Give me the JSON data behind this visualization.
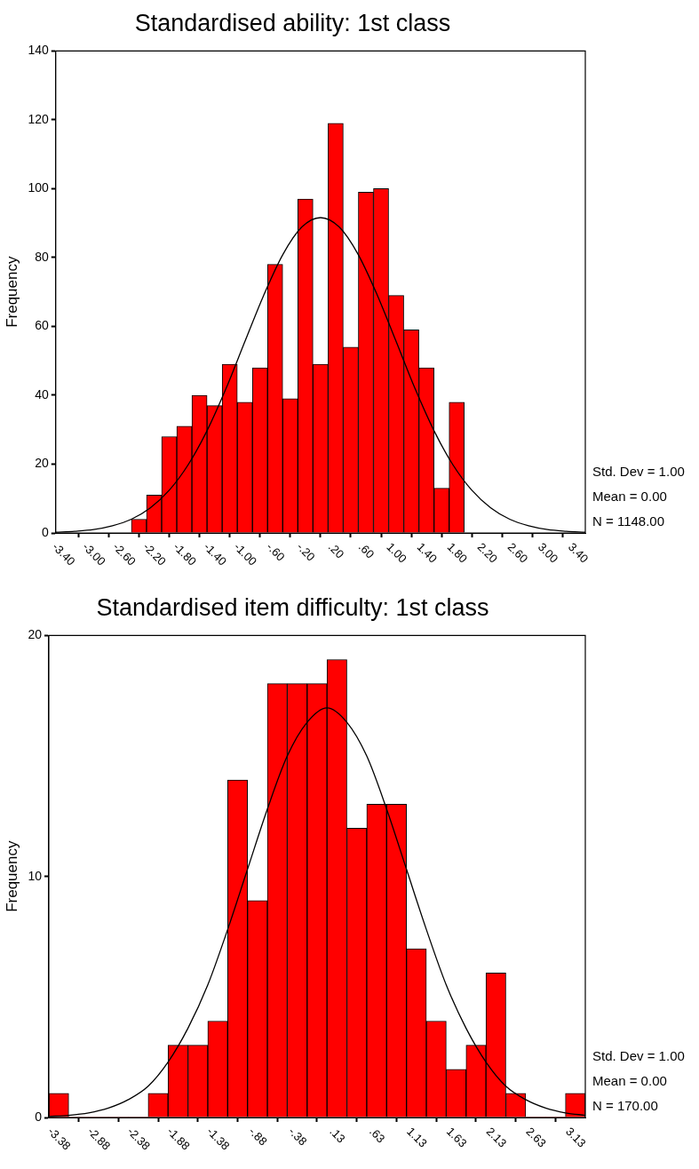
{
  "chart_data": [
    {
      "type": "histogram",
      "title": "Standardised ability: 1st class",
      "ylabel": "Frequency",
      "bins": [
        -2.5,
        -2.3,
        -2.1,
        -1.9,
        -1.7,
        -1.5,
        -1.3,
        -1.1,
        -0.9,
        -0.7,
        -0.5,
        -0.3,
        -0.1,
        0.1,
        0.3,
        0.5,
        0.7,
        0.9,
        1.1,
        1.3,
        1.5,
        1.7,
        1.9
      ],
      "series": [
        {
          "color": "#ff0000",
          "values": [
            4,
            11,
            28,
            31,
            40,
            37,
            49,
            38,
            48,
            78,
            39,
            97,
            49,
            119,
            54,
            99,
            100,
            69,
            59,
            48,
            13,
            38
          ]
        },
        {
          "type": "line",
          "color": "#000000",
          "x": [
            -3.5,
            -3.25,
            -3.0,
            -2.75,
            -2.5,
            -2.25,
            -2.0,
            -1.75,
            -1.5,
            -1.25,
            -1.0,
            -0.75,
            -0.5,
            -0.25,
            0,
            0.25,
            0.5,
            0.75,
            1.0,
            1.25,
            1.5,
            1.75,
            2.0,
            2.25,
            2.5,
            2.75,
            3.0,
            3.25,
            3.5
          ],
          "values": [
            0.2,
            0.5,
            1.0,
            2.1,
            4.0,
            7.3,
            12.4,
            19.8,
            29.7,
            41.9,
            55.6,
            69.1,
            80.8,
            88.8,
            91.6,
            88.8,
            80.8,
            69.1,
            55.6,
            41.9,
            29.7,
            19.8,
            12.4,
            7.3,
            4.0,
            2.1,
            1.0,
            0.5,
            0.2
          ]
        }
      ],
      "xlim": [
        -3.5,
        3.5
      ],
      "xticks": [
        {
          "value": -3.4,
          "label": "-3.40"
        },
        {
          "value": -3.0,
          "label": "-3.00"
        },
        {
          "value": -2.6,
          "label": "-2.60"
        },
        {
          "value": -2.2,
          "label": "-2.20"
        },
        {
          "value": -1.8,
          "label": "-1.80"
        },
        {
          "value": -1.4,
          "label": "-1.40"
        },
        {
          "value": -1.0,
          "label": "-1.00"
        },
        {
          "value": -0.6,
          "label": "-.60"
        },
        {
          "value": -0.2,
          "label": "-.20"
        },
        {
          "value": 0.2,
          "label": ".20"
        },
        {
          "value": 0.6,
          "label": ".60"
        },
        {
          "value": 1.0,
          "label": "1.00"
        },
        {
          "value": 1.4,
          "label": "1.40"
        },
        {
          "value": 1.8,
          "label": "1.80"
        },
        {
          "value": 2.2,
          "label": "2.20"
        },
        {
          "value": 2.6,
          "label": "2.60"
        },
        {
          "value": 3.0,
          "label": "3.00"
        },
        {
          "value": 3.4,
          "label": "3.40"
        }
      ],
      "ylim": [
        0,
        140
      ],
      "yticks": [
        0,
        20,
        40,
        60,
        80,
        100,
        120,
        140
      ],
      "annotations": [
        "Std. Dev = 1.00",
        "Mean = 0.00",
        "N = 1148.00"
      ]
    },
    {
      "type": "histogram",
      "title": "Standardised item difficulty: 1st class",
      "ylabel": "Frequency",
      "bins": [
        -3.5,
        -3.25,
        -3.0,
        -2.75,
        -2.5,
        -2.25,
        -2.0,
        -1.75,
        -1.5,
        -1.25,
        -1.0,
        -0.75,
        -0.5,
        -0.25,
        0,
        0.25,
        0.5,
        0.75,
        1.0,
        1.25,
        1.5,
        1.75,
        2.0,
        2.25,
        2.5,
        2.75,
        3.0,
        3.25
      ],
      "series": [
        {
          "color": "#ff0000",
          "values": [
            1,
            0,
            0,
            0,
            0,
            1,
            3,
            3,
            4,
            14,
            9,
            18,
            18,
            18,
            19,
            12,
            13,
            13,
            7,
            4,
            2,
            3,
            6,
            1,
            0,
            0,
            1
          ]
        },
        {
          "type": "line",
          "color": "#000000",
          "x": [
            -3.5,
            -3.25,
            -3.0,
            -2.75,
            -2.5,
            -2.25,
            -2.0,
            -1.75,
            -1.5,
            -1.25,
            -1.0,
            -0.75,
            -0.5,
            -0.25,
            0,
            0.25,
            0.5,
            0.75,
            1.0,
            1.25,
            1.5,
            1.75,
            2.0,
            2.25,
            2.5,
            2.75,
            3.0,
            3.25
          ],
          "values": [
            0.04,
            0.09,
            0.19,
            0.39,
            0.74,
            1.3,
            2.3,
            3.7,
            5.5,
            7.8,
            10.3,
            12.8,
            15.0,
            16.4,
            17.0,
            16.4,
            15.0,
            12.8,
            10.3,
            7.8,
            5.5,
            3.7,
            2.3,
            1.3,
            0.74,
            0.39,
            0.19,
            0.09
          ]
        }
      ],
      "xlim": [
        -3.5,
        3.25
      ],
      "xticks": [
        {
          "value": -3.375,
          "label": "-3.38"
        },
        {
          "value": -2.875,
          "label": "-2.88"
        },
        {
          "value": -2.375,
          "label": "-2.38"
        },
        {
          "value": -1.875,
          "label": "-1.88"
        },
        {
          "value": -1.375,
          "label": "-1.38"
        },
        {
          "value": -0.875,
          "label": "-.88"
        },
        {
          "value": -0.375,
          "label": "-.38"
        },
        {
          "value": 0.125,
          "label": ".13"
        },
        {
          "value": 0.625,
          "label": ".63"
        },
        {
          "value": 1.125,
          "label": "1.13"
        },
        {
          "value": 1.625,
          "label": "1.63"
        },
        {
          "value": 2.125,
          "label": "2.13"
        },
        {
          "value": 2.625,
          "label": "2.63"
        },
        {
          "value": 3.125,
          "label": "3.13"
        }
      ],
      "ylim": [
        0,
        20
      ],
      "yticks": [
        0,
        10,
        20
      ],
      "annotations": [
        "Std. Dev = 1.00",
        "Mean = 0.00",
        "N = 170.00"
      ]
    }
  ]
}
